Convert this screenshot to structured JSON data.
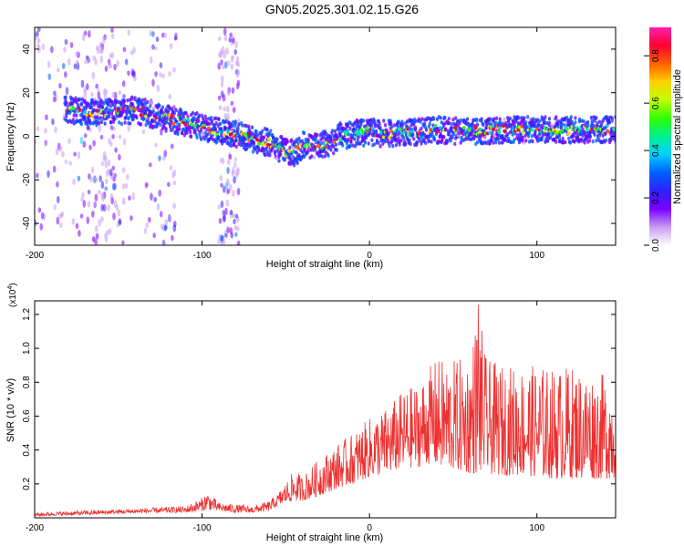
{
  "title": "GN05.2025.301.02.15.G26",
  "chart_data": [
    {
      "type": "heatmap",
      "name": "spectrogram",
      "xlabel": "Height of straight line (km)",
      "ylabel": "Frequency (Hz)",
      "xlim": [
        -200,
        147
      ],
      "ylim": [
        -50,
        50
      ],
      "x_ticks": [
        -200,
        -100,
        0,
        100
      ],
      "x_tick_labels": [
        "-200",
        "-100",
        "0",
        "100"
      ],
      "y_ticks": [
        -40,
        -20,
        0,
        20,
        40
      ],
      "y_tick_labels": [
        "-40",
        "-20",
        "0",
        "20",
        "40"
      ],
      "colorbar": {
        "label": "Normalized spectral amplitude",
        "range": [
          0.0,
          0.92
        ],
        "ticks": [
          0.0,
          0.2,
          0.4,
          0.6,
          0.8
        ],
        "tick_labels": [
          "0.0",
          "0.2",
          "0.4",
          "0.6",
          "0.8"
        ],
        "colors": [
          "#ffffff",
          "#c89cf0",
          "#7a00ff",
          "#3020ff",
          "#0060ff",
          "#00d0ff",
          "#00f090",
          "#30ff00",
          "#c0ff00",
          "#ffd000",
          "#ff6000",
          "#ff0030",
          "#ff20b0"
        ]
      },
      "ridge": {
        "x": [
          -180,
          -165,
          -150,
          -140,
          -130,
          -120,
          -110,
          -100,
          -90,
          -80,
          -70,
          -60,
          -50,
          -45,
          -40,
          -30,
          -22,
          -18,
          -10,
          0,
          10,
          20,
          30,
          40,
          60,
          80,
          100,
          120,
          140,
          147
        ],
        "y": [
          12,
          11,
          11,
          12,
          10,
          8,
          6,
          4,
          2,
          1,
          -1,
          -3,
          -7,
          -8,
          -4,
          -4,
          -3,
          0,
          1,
          2,
          1,
          2,
          2,
          3,
          2,
          3,
          3,
          3,
          3,
          3
        ]
      },
      "ridge_extent": [
        -182,
        147
      ]
    },
    {
      "type": "line",
      "name": "snr",
      "xlabel": "Height of straight line (km)",
      "ylabel": "SNR (10 * v/v)",
      "y_multiplier_label": "(x10",
      "y_multiplier_exp": "4",
      "y_multiplier_close": ")",
      "xlim": [
        -200,
        147
      ],
      "ylim": [
        0,
        12800
      ],
      "x_ticks": [
        -200,
        -100,
        0,
        100
      ],
      "x_tick_labels": [
        "-200",
        "-100",
        "0",
        "100"
      ],
      "y_ticks": [
        2000,
        4000,
        6000,
        8000,
        10000,
        12000
      ],
      "y_tick_labels": [
        "0.2",
        "0.4",
        "0.6",
        "0.8",
        "1.0",
        "1.2"
      ],
      "color": "#ee3030",
      "envelope": {
        "x": [
          -200,
          -180,
          -150,
          -130,
          -110,
          -100,
          -97,
          -90,
          -80,
          -70,
          -60,
          -55,
          -50,
          -45,
          -40,
          -30,
          -20,
          -10,
          0,
          10,
          20,
          30,
          35,
          40,
          50,
          60,
          65,
          70,
          80,
          90,
          100,
          110,
          120,
          130,
          140,
          147
        ],
        "low": [
          100,
          150,
          250,
          300,
          300,
          400,
          500,
          400,
          300,
          300,
          400,
          700,
          900,
          1000,
          1000,
          1300,
          1700,
          2000,
          2400,
          2600,
          2900,
          3000,
          3200,
          3000,
          2800,
          2600,
          2600,
          2600,
          2500,
          2500,
          2400,
          2300,
          2300,
          2300,
          2300,
          2300
        ],
        "high": [
          300,
          400,
          500,
          600,
          700,
          1200,
          1600,
          900,
          800,
          700,
          1000,
          1400,
          2100,
          2800,
          2500,
          3500,
          4300,
          5000,
          5900,
          6500,
          7500,
          8000,
          8800,
          9400,
          9300,
          9600,
          12600,
          9300,
          9000,
          9000,
          9000,
          8800,
          9000,
          8700,
          8500,
          8200
        ]
      }
    }
  ]
}
